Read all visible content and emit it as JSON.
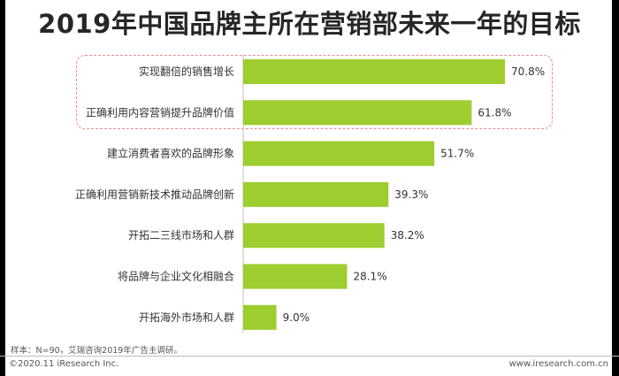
{
  "chart_data": {
    "type": "bar",
    "orientation": "horizontal",
    "title": "2019年中国品牌主所在营销部未来一年的目标",
    "categories": [
      "实现翻倍的销售增长",
      "正确利用内容营销提升品牌价值",
      "建立消费者喜欢的品牌形象",
      "正确利用营销新技术推动品牌创新",
      "开拓二三线市场和人群",
      "将品牌与企业文化相融合",
      "开拓海外市场和人群"
    ],
    "values": [
      70.8,
      61.8,
      51.7,
      39.3,
      38.2,
      28.1,
      9.0
    ],
    "value_labels": [
      "70.8%",
      "61.8%",
      "51.7%",
      "39.3%",
      "38.2%",
      "28.1%",
      "9.0%"
    ],
    "unit": "%",
    "xlim": [
      0,
      80
    ],
    "bar_color": "#9dcd2f",
    "highlight_color": "#e88a8a",
    "highlighted_categories": [
      0,
      1
    ],
    "grid": false,
    "legend": "none"
  },
  "note": "样本：N=90，艾瑞咨询2019年广告主调研。",
  "footer": {
    "copyright": "©2020.11 iResearch Inc.",
    "website": "www.iresearch.com.cn"
  }
}
